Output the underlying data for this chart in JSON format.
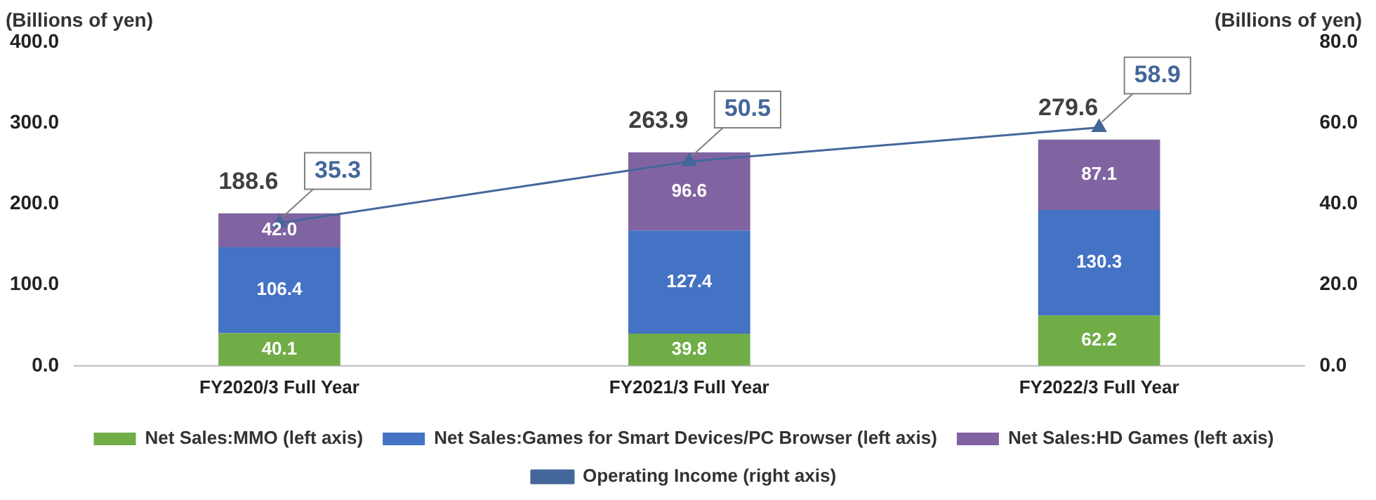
{
  "chart_data": {
    "type": "bar",
    "stacked": true,
    "categories": [
      "FY2020/3 Full Year",
      "FY2021/3 Full Year",
      "FY2022/3 Full Year"
    ],
    "series": [
      {
        "name": "Net Sales:MMO (left axis)",
        "color": "#70ad47",
        "values": [
          40.1,
          39.8,
          62.2
        ],
        "value_labels": [
          "40.1",
          "39.8",
          "62.2"
        ]
      },
      {
        "name": "Net Sales:Games for Smart Devices/PC Browser (left axis)",
        "color": "#4472c4",
        "values": [
          106.4,
          127.4,
          130.3
        ],
        "value_labels": [
          "106.4",
          "127.4",
          "130.3"
        ]
      },
      {
        "name": "Net Sales:HD Games (left axis)",
        "color": "#8064a2",
        "values": [
          42.0,
          96.6,
          87.1
        ],
        "value_labels": [
          "42.0",
          "96.6",
          "87.1"
        ]
      },
      {
        "name": "Operating Income (right axis)",
        "type": "line",
        "axis": "y2",
        "color": "#44679a",
        "marker": "triangle",
        "values": [
          35.3,
          50.5,
          58.9
        ],
        "value_labels": [
          "35.3",
          "50.5",
          "58.9"
        ]
      }
    ],
    "totals": [
      "188.6",
      "263.9",
      "279.6"
    ],
    "ylabel": "(Billions of yen)",
    "y2label": "(Billions of yen)",
    "ylim": [
      0,
      400
    ],
    "yticks": [
      {
        "value": 0,
        "label": "0.0"
      },
      {
        "value": 100,
        "label": "100.0"
      },
      {
        "value": 200,
        "label": "200.0"
      },
      {
        "value": 300,
        "label": "300.0"
      },
      {
        "value": 400,
        "label": "400.0"
      }
    ],
    "y2lim": [
      0,
      80
    ],
    "y2ticks": [
      {
        "value": 0,
        "label": "0.0"
      },
      {
        "value": 20,
        "label": "20.0"
      },
      {
        "value": 40,
        "label": "40.0"
      },
      {
        "value": 60,
        "label": "60.0"
      },
      {
        "value": 80,
        "label": "80.0"
      }
    ],
    "grid": false,
    "legend": "bottom"
  }
}
